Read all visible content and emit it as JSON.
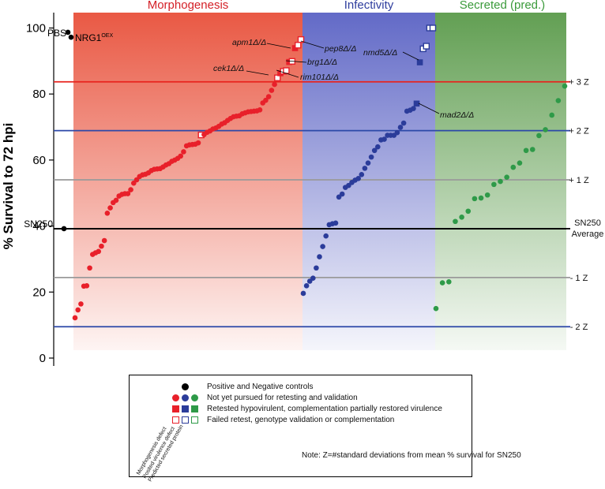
{
  "chart_data": {
    "type": "scatter",
    "ylabel": "% Survival to 72 hpi",
    "ylim": [
      -2,
      104
    ],
    "yticks": [
      0,
      20,
      40,
      60,
      80,
      100
    ],
    "regions": [
      {
        "label": "Morphogenesis",
        "color": "#e8503a",
        "text_color": "#d42027"
      },
      {
        "label": "Infectivity",
        "color": "#5a62c4",
        "text_color": "#2f3e9e"
      },
      {
        "label": "Secreted (pred.)",
        "color": "#5a9a4a",
        "text_color": "#3a9a3a"
      }
    ],
    "reference_lines": [
      {
        "label": "+ 3 Z",
        "y": 83.7,
        "color": "#e8231d"
      },
      {
        "label": "+ 2 Z",
        "y": 68.9,
        "color": "#2c48a8"
      },
      {
        "label": "+ 1 Z",
        "y": 54,
        "color": "#9a9a9a"
      },
      {
        "label": "SN250 Average",
        "y": 39.2,
        "color": "#000000"
      },
      {
        "label": "- 1 Z",
        "y": 24.4,
        "color": "#9a9a9a"
      },
      {
        "label": "- 2 Z",
        "y": 9.5,
        "color": "#2c48a8"
      }
    ],
    "controls": [
      {
        "label": "PBS",
        "y": 98.7
      },
      {
        "label": "NRG1",
        "superscript": "OEX",
        "y": 97.2
      },
      {
        "label": "SN250",
        "y": 39.2
      }
    ],
    "series": [
      {
        "group": "Morphogenesis",
        "color": "#e8202a",
        "not_pursued": [
          12.2,
          14.6,
          16.4,
          21.8,
          21.9,
          27.3,
          31.4,
          31.9,
          32.3,
          33.9,
          35.6,
          43.9,
          45.5,
          47.1,
          47.8,
          49.1,
          49.6,
          49.8,
          49.8,
          51,
          53,
          54,
          55,
          55.5,
          55.7,
          56.1,
          56.8,
          57.2,
          57.3,
          57.4,
          57.9,
          58.5,
          58.9,
          59.6,
          60,
          60.5,
          61.2,
          62.5,
          64.3,
          64.6,
          64.7,
          64.8,
          65.2,
          67.7,
          68.4,
          68.8,
          69.4,
          69.7,
          70.2,
          70.9,
          71.3,
          72,
          72.6,
          73.1,
          73.3,
          73.4,
          74,
          74.3,
          74.7,
          74.8,
          74.9,
          75.2,
          77.3,
          78.1,
          79.2,
          81.1,
          82.9,
          74.6
        ],
        "confirmed": [
          86.3,
          89.7,
          93.9
        ],
        "failed": [
          67.6,
          84.9,
          86.9,
          87.1,
          89.9,
          94.8,
          96.5
        ]
      },
      {
        "group": "Infectivity",
        "color": "#2b3c9a",
        "not_pursued": [
          19.6,
          21.9,
          23.3,
          24.2,
          27.3,
          30.7,
          33.8,
          37,
          40.4,
          40.7,
          40.9,
          48.8,
          49.7,
          51.7,
          52.3,
          53.2,
          53.9,
          54.4,
          55.6,
          57.5,
          59.1,
          60.9,
          62.9,
          64,
          66.1,
          66.3,
          67.5,
          67.5,
          67.5,
          68.3,
          69.9,
          71.2,
          74.8,
          75.1,
          75.6
        ],
        "confirmed": [
          77.1,
          89.6
        ],
        "failed": [
          93.7,
          94.5,
          100,
          100
        ]
      },
      {
        "group": "Secreted (pred.)",
        "color": "#2e9a48",
        "not_pursued": [
          15,
          22.8,
          23.1,
          41.4,
          42.7,
          44.5,
          48.3,
          48.5,
          49.4,
          52.6,
          53.5,
          54.8,
          57.8,
          59.1,
          62.9,
          63.2,
          67.4,
          69.2,
          73.6,
          78,
          82.4
        ]
      }
    ],
    "annotations": [
      {
        "label": "apm1Δ/Δ"
      },
      {
        "label": "pep8Δ/Δ"
      },
      {
        "label": "brg1Δ/Δ"
      },
      {
        "label": "cek1Δ/Δ"
      },
      {
        "label": "rim101Δ/Δ"
      },
      {
        "label": "nmd5Δ/Δ"
      },
      {
        "label": "mad2Δ/Δ"
      }
    ],
    "legend": {
      "column_labels": [
        "Morphogenesis defect",
        "Posited virulence defect",
        "Predicted secreted protein"
      ],
      "entries": [
        "Positive and Negative controls",
        "Not yet pursued for retesting and validation",
        "Retested hypovirulent, complementation partially restored virulence",
        "Failed retest, genotype validation or complementation"
      ],
      "note": "Note: Z=#standard deviations from mean % survival for SN250"
    }
  }
}
